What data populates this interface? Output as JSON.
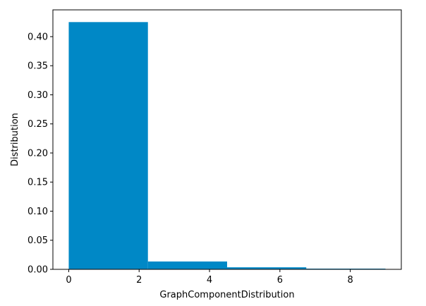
{
  "chart_data": {
    "type": "bar",
    "subtype": "histogram",
    "bins": [
      {
        "start": 0.0,
        "end": 2.25,
        "value": 0.425
      },
      {
        "start": 2.25,
        "end": 4.5,
        "value": 0.0135
      },
      {
        "start": 4.5,
        "end": 6.75,
        "value": 0.0035
      },
      {
        "start": 6.75,
        "end": 9.0,
        "value": 0.0012
      }
    ],
    "xlabel": "GraphComponentDistribution",
    "ylabel": "Distribution",
    "xlim": [
      -0.45,
      9.45
    ],
    "ylim": [
      0,
      0.446
    ],
    "xticks": [
      {
        "value": 0,
        "label": "0"
      },
      {
        "value": 2,
        "label": "2"
      },
      {
        "value": 4,
        "label": "4"
      },
      {
        "value": 6,
        "label": "6"
      },
      {
        "value": 8,
        "label": "8"
      }
    ],
    "yticks": [
      {
        "value": 0.0,
        "label": "0.00"
      },
      {
        "value": 0.05,
        "label": "0.05"
      },
      {
        "value": 0.1,
        "label": "0.10"
      },
      {
        "value": 0.15,
        "label": "0.15"
      },
      {
        "value": 0.2,
        "label": "0.20"
      },
      {
        "value": 0.25,
        "label": "0.25"
      },
      {
        "value": 0.3,
        "label": "0.30"
      },
      {
        "value": 0.35,
        "label": "0.35"
      },
      {
        "value": 0.4,
        "label": "0.40"
      }
    ],
    "bar_color": "#0088c6",
    "grid": false,
    "legend": "none"
  }
}
